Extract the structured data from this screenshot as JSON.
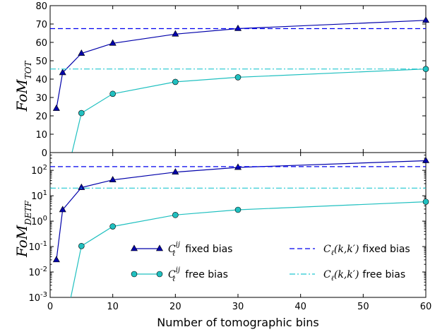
{
  "chart_data": [
    {
      "type": "line",
      "panel": "top",
      "ylabel": "FoM",
      "ylabel_sub": "TOT",
      "xlabel": "",
      "xlim": [
        0,
        60
      ],
      "ylim": [
        0,
        80
      ],
      "yscale": "linear",
      "xticks": [
        "0",
        "10",
        "20",
        "30",
        "40",
        "50",
        "60"
      ],
      "yticks": [
        "0",
        "10",
        "20",
        "30",
        "40",
        "50",
        "60",
        "70",
        "80"
      ],
      "series": [
        {
          "name": "fixed bias",
          "style": "solid-triangle",
          "color": "#0000aa",
          "x": [
            1,
            2,
            5,
            10,
            20,
            30,
            60
          ],
          "y": [
            24,
            43.5,
            54,
            59.5,
            64.5,
            67.5,
            72
          ]
        },
        {
          "name": "free bias",
          "style": "solid-circle",
          "color": "#20c0c0",
          "x": [
            3.5,
            5,
            10,
            20,
            30,
            60
          ],
          "y": [
            0,
            21.5,
            32,
            38.5,
            41,
            45.5
          ]
        },
        {
          "name": "fixed bias",
          "style": "dashed",
          "color": "#0000ee",
          "x": [
            0,
            60
          ],
          "y": [
            67.5,
            67.5
          ]
        },
        {
          "name": "free bias",
          "style": "dashdot",
          "color": "#20c8d0",
          "x": [
            0,
            60
          ],
          "y": [
            45.5,
            45.5
          ]
        }
      ]
    },
    {
      "type": "line",
      "panel": "bottom",
      "ylabel": "FoM",
      "ylabel_sub": "DETF",
      "xlabel": "Number of tomographic bins",
      "xlim": [
        0,
        60
      ],
      "ylim": [
        0.001,
        500
      ],
      "yscale": "log",
      "xticks": [
        "0",
        "10",
        "20",
        "30",
        "40",
        "50",
        "60"
      ],
      "yticks": [
        {
          "base": "10",
          "exp": "-3"
        },
        {
          "base": "10",
          "exp": "-2"
        },
        {
          "base": "10",
          "exp": "-1"
        },
        {
          "base": "10",
          "exp": "0"
        },
        {
          "base": "10",
          "exp": "1"
        },
        {
          "base": "10",
          "exp": "2"
        }
      ],
      "series": [
        {
          "name": "fixed bias",
          "style": "solid-triangle",
          "color": "#0000aa",
          "x": [
            1,
            2,
            5,
            10,
            20,
            30,
            60
          ],
          "y": [
            0.03,
            2.8,
            21,
            42,
            85,
            130,
            240
          ]
        },
        {
          "name": "free bias",
          "style": "solid-circle",
          "color": "#20c0c0",
          "x": [
            3.3,
            5,
            10,
            20,
            30,
            60
          ],
          "y": [
            0.001,
            0.105,
            0.62,
            1.75,
            2.8,
            5.8
          ]
        },
        {
          "name": "fixed bias",
          "style": "dashed",
          "color": "#0000ee",
          "x": [
            0,
            60
          ],
          "y": [
            140,
            140
          ]
        },
        {
          "name": "free bias",
          "style": "dashdot",
          "color": "#20c8d0",
          "x": [
            0,
            60
          ],
          "y": [
            20,
            20
          ]
        }
      ],
      "legend": {
        "placement": "bottom-right",
        "entries": [
          {
            "math": "C",
            "sub": "ℓ",
            "sup": "ij",
            "label": "fixed bias",
            "style": "solid-triangle"
          },
          {
            "math": "C",
            "sub": "ℓ",
            "sup": "ij",
            "label": "free bias",
            "style": "solid-circle"
          },
          {
            "math": "C",
            "sub": "ℓ",
            "arg": "(k,k′)",
            "label": "fixed bias",
            "style": "dashed"
          },
          {
            "math": "C",
            "sub": "ℓ",
            "arg": "(k,k′)",
            "label": "free bias",
            "style": "dashdot"
          }
        ]
      }
    }
  ]
}
